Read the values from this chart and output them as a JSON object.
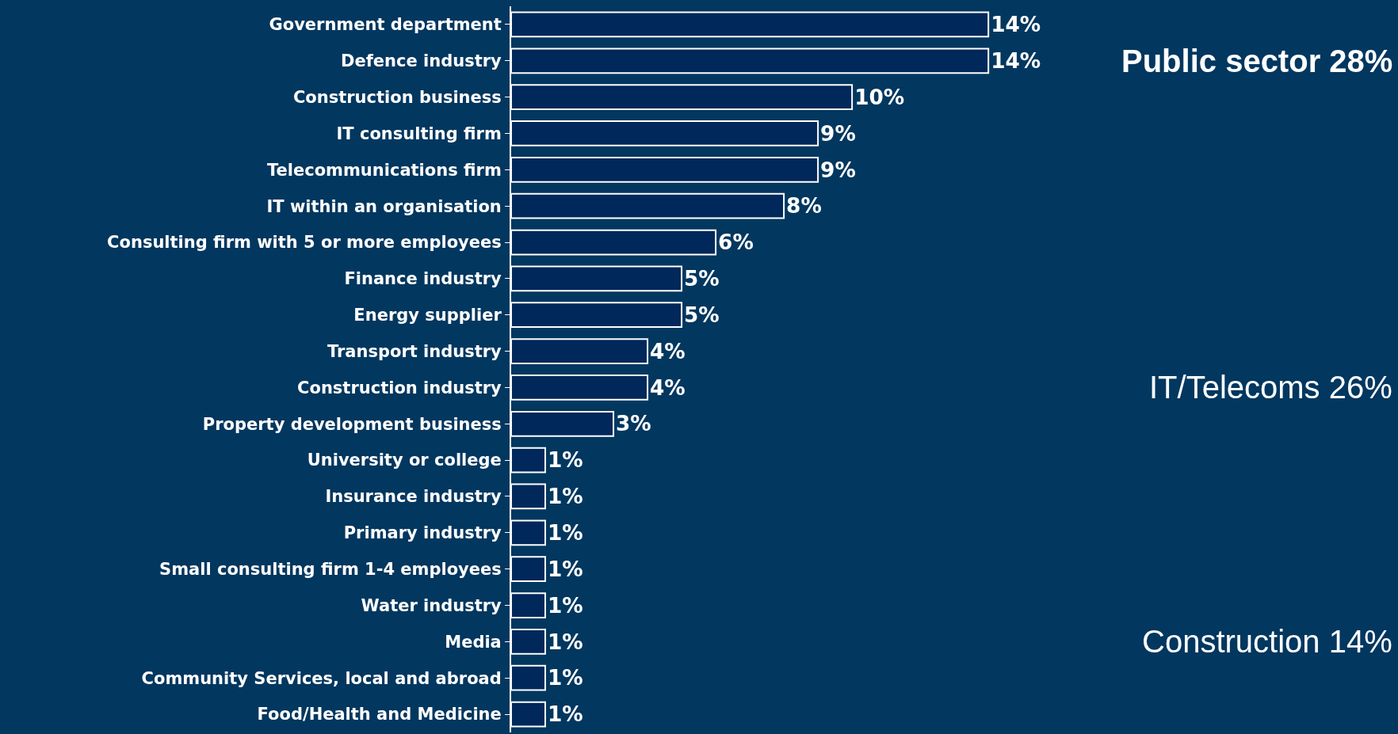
{
  "chart_data": {
    "type": "bar",
    "orientation": "horizontal",
    "grid": false,
    "legend": false,
    "categories": [
      "Government department",
      "Defence industry",
      "Construction business",
      "IT consulting firm",
      "Telecommunications firm",
      "IT within an organisation",
      "Consulting firm with 5 or more employees",
      "Finance industry",
      "Energy supplier",
      "Transport industry",
      "Construction industry",
      "Property development business",
      "University or college",
      "Insurance industry",
      "Primary industry",
      "Small consulting firm 1-4 employees",
      "Water industry",
      "Media",
      "Community Services, local and abroad",
      "Food/Health and Medicine"
    ],
    "values": [
      14,
      14,
      10,
      9,
      9,
      8,
      6,
      5,
      5,
      4,
      4,
      3,
      1,
      1,
      1,
      1,
      1,
      1,
      1,
      1
    ],
    "value_labels": [
      "14%",
      "14%",
      "10%",
      "9%",
      "9%",
      "8%",
      "6%",
      "5%",
      "5%",
      "4%",
      "4%",
      "3%",
      "1%",
      "1%",
      "1%",
      "1%",
      "1%",
      "1%",
      "1%",
      "1%"
    ],
    "color": "#00285a",
    "annotations": [
      "Public sector 28%",
      "IT/Telecoms 26%",
      "Construction 14%"
    ]
  }
}
